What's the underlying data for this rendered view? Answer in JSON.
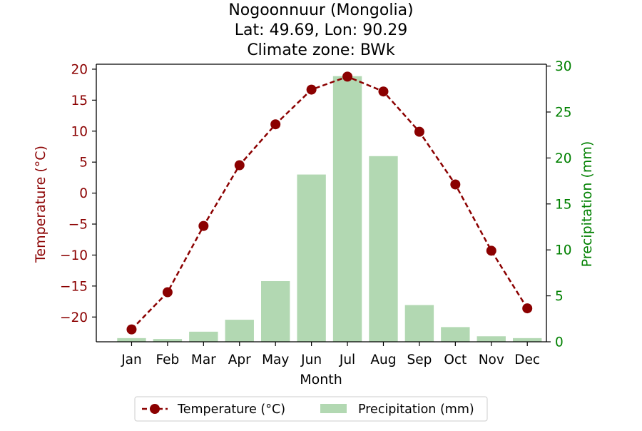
{
  "chart_data": {
    "type": "bar+line",
    "title_lines": [
      "Nogoonnuur (Mongolia)",
      "Lat: 49.69, Lon: 90.29",
      "Climate zone: BWk"
    ],
    "xlabel": "Month",
    "ylabel_left": "Temperature (°C)",
    "ylabel_right": "Precipitation (mm)",
    "categories": [
      "Jan",
      "Feb",
      "Mar",
      "Apr",
      "May",
      "Jun",
      "Jul",
      "Aug",
      "Sep",
      "Oct",
      "Nov",
      "Dec"
    ],
    "ylim_left": [
      -24,
      20.8
    ],
    "ylim_right": [
      0,
      30.2
    ],
    "yticks_left": [
      -20,
      -15,
      -10,
      -5,
      0,
      5,
      10,
      15,
      20
    ],
    "yticks_left_labels": [
      "−20",
      "−15",
      "−10",
      "−5",
      "0",
      "5",
      "10",
      "15",
      "20"
    ],
    "yticks_right": [
      0,
      5,
      10,
      15,
      20,
      25,
      30
    ],
    "yticks_right_labels": [
      "0",
      "5",
      "10",
      "15",
      "20",
      "25",
      "30"
    ],
    "series": [
      {
        "name": "Temperature (°C)",
        "axis": "left",
        "kind": "line",
        "values": [
          -22.0,
          -16.0,
          -5.3,
          4.5,
          11.1,
          16.7,
          18.8,
          16.4,
          9.9,
          1.4,
          -9.3,
          -18.6
        ]
      },
      {
        "name": "Precipitation (mm)",
        "axis": "right",
        "kind": "bar",
        "values": [
          0.4,
          0.3,
          1.1,
          2.4,
          6.6,
          18.2,
          28.9,
          20.2,
          4.0,
          1.6,
          0.6,
          0.4
        ]
      }
    ],
    "legend_location": "below plot, center",
    "grid": false
  },
  "colors": {
    "temperature": "#8b0000",
    "precipitation_bar": "#b2d8b2",
    "right_axis": "#008000",
    "axis": "#000000"
  }
}
